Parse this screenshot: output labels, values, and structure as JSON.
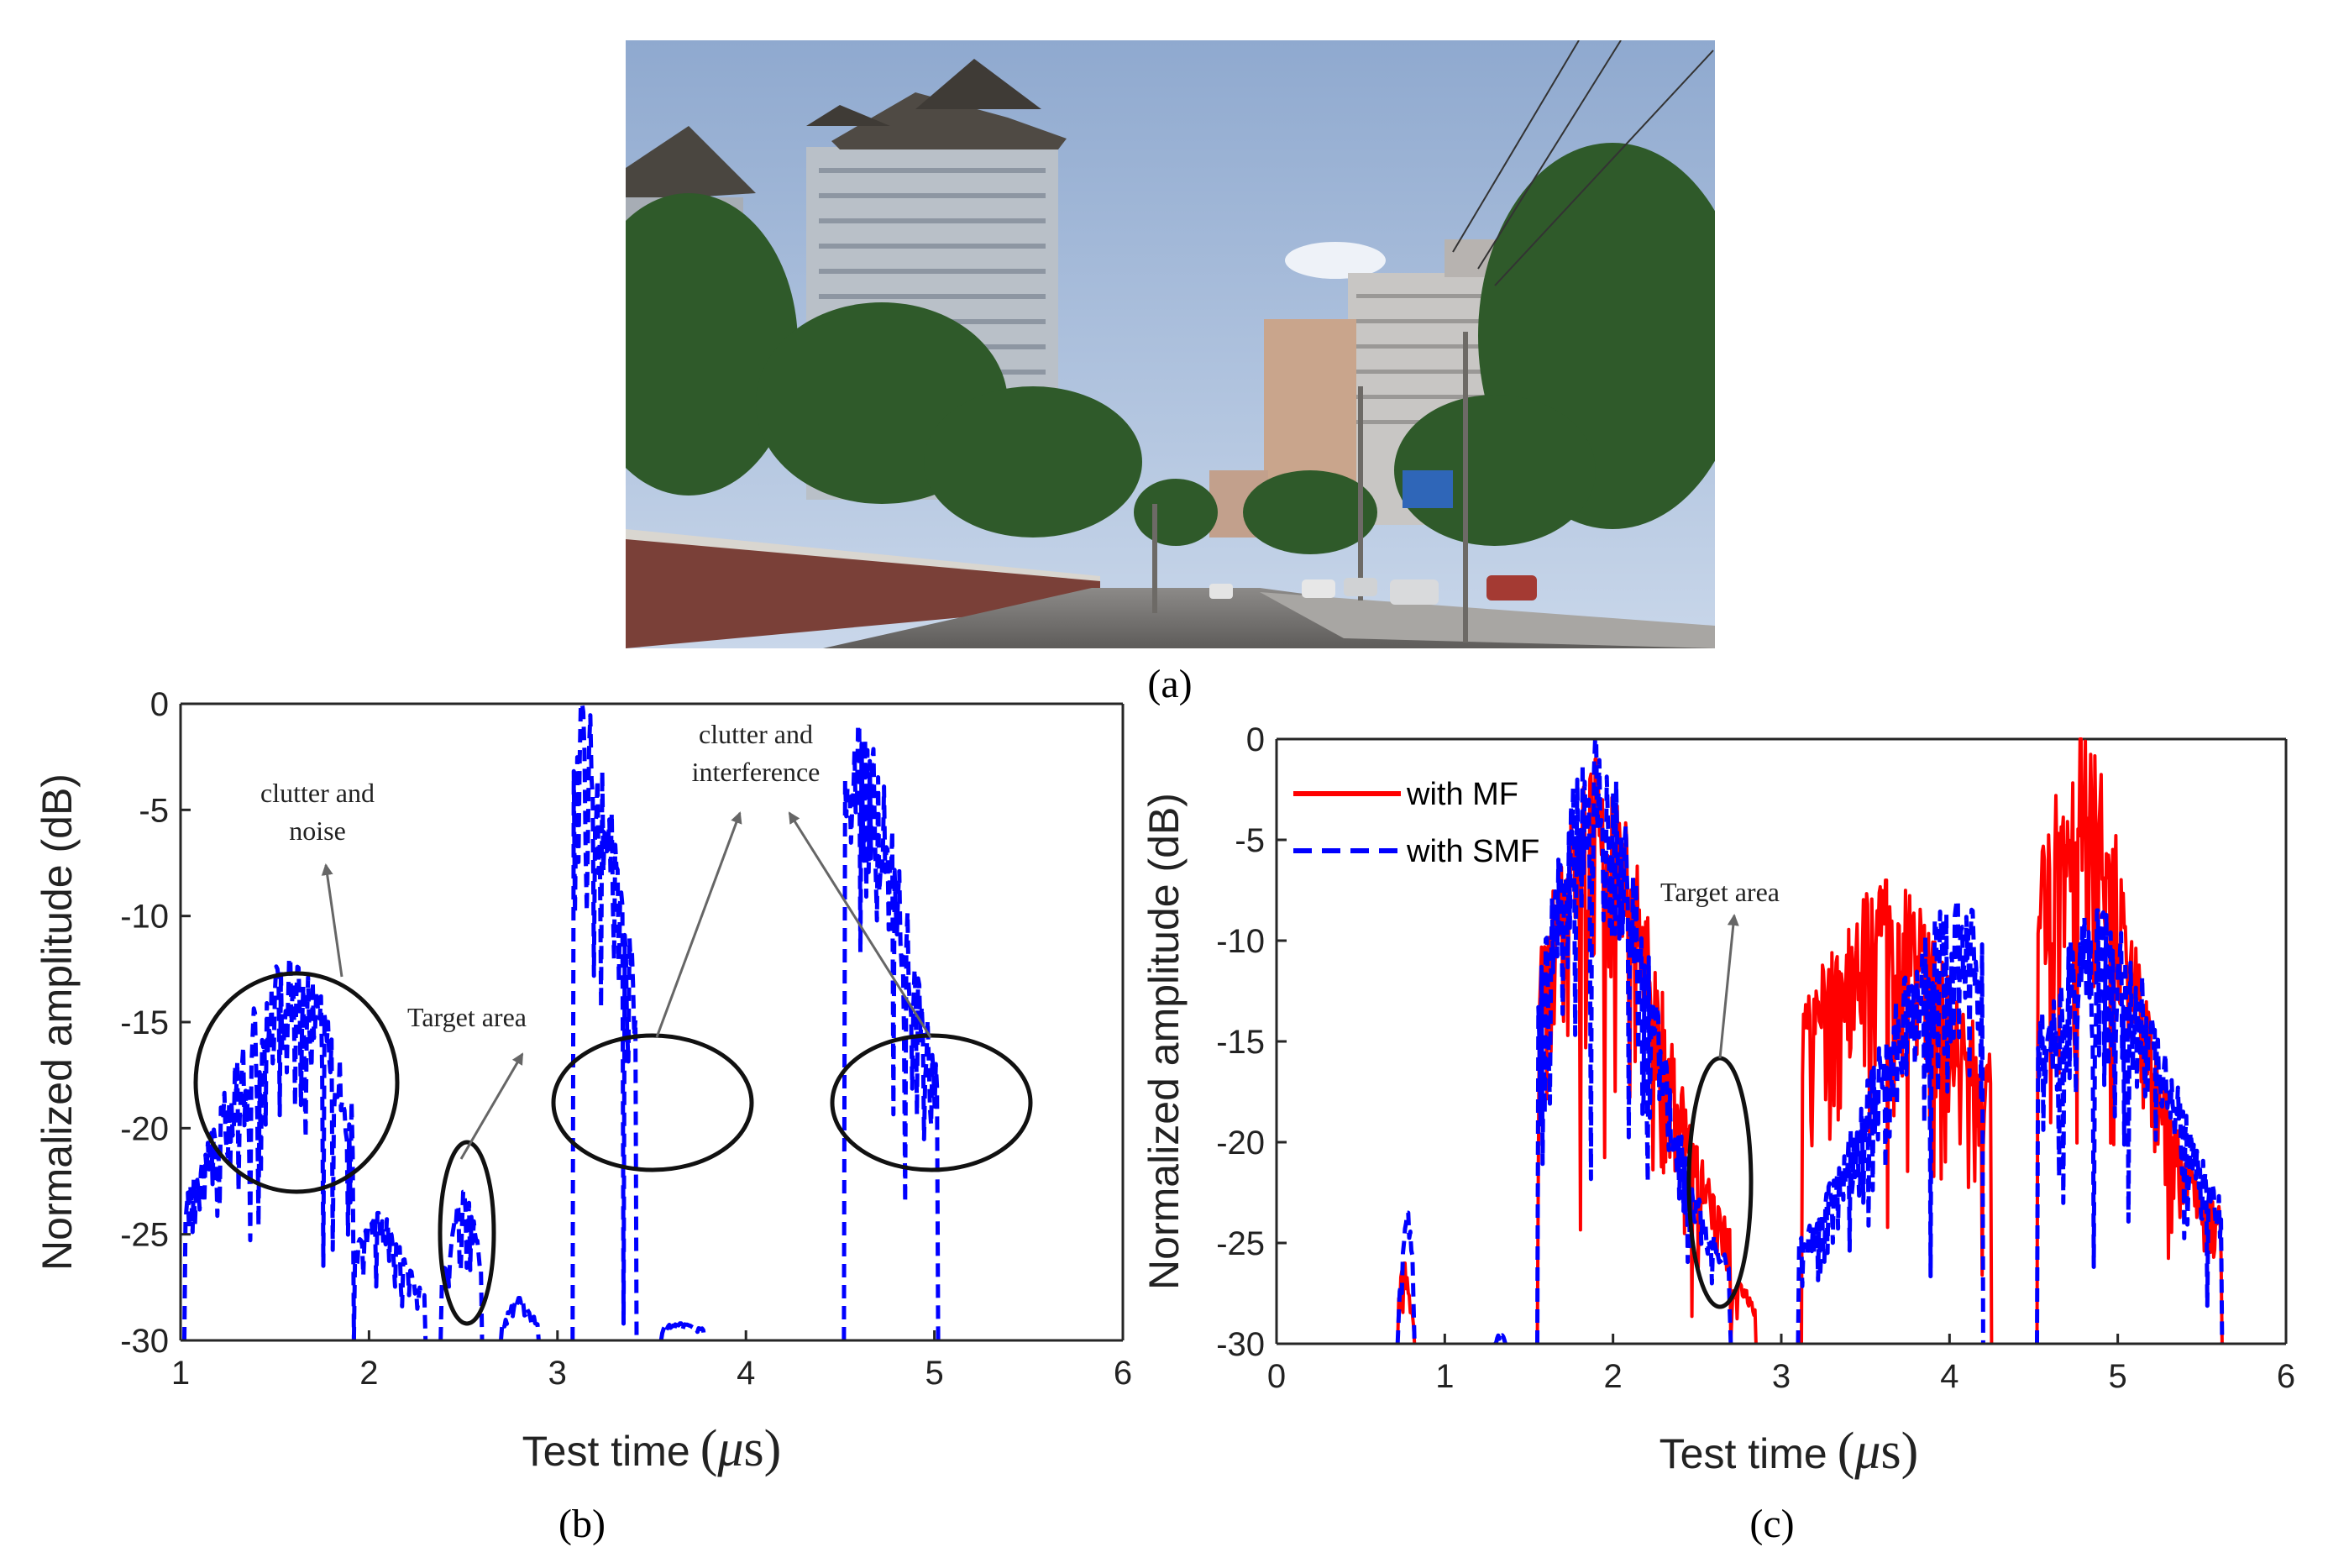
{
  "figure": {
    "captions": {
      "a": "(a)",
      "b": "(b)",
      "c": "(c)"
    },
    "photo_description_label": "street-scene-photo"
  },
  "colors": {
    "mf": "#ff0000",
    "smf": "#0000ff",
    "axis": "#262626",
    "annotation": "#666666"
  },
  "chart_data": [
    {
      "id": "b",
      "type": "line",
      "title": "",
      "xlabel": "Test time",
      "xlabel_unit_greek": "μ",
      "xlabel_unit_suffix": "s",
      "ylabel": "Normalized amplitude (dB)",
      "xlim": [
        1,
        6
      ],
      "ylim": [
        -30,
        0
      ],
      "xticks": [
        "1",
        "2",
        "3",
        "4",
        "5",
        "6"
      ],
      "yticks": [
        "0",
        "-5",
        "-10",
        "-15",
        "-20",
        "-25",
        "-30"
      ],
      "series": [
        {
          "name": "with SMF",
          "style": "dashed",
          "color": "#0000ff",
          "segments": [
            {
              "range": [
                1.02,
                1.92
              ],
              "base": -26,
              "peak": -12,
              "peak_at": 1.58,
              "spread": 0.45
            },
            {
              "range": [
                1.92,
                2.3
              ],
              "base": -29,
              "peak": -24,
              "peak_at": 2.05,
              "spread": 0.2
            },
            {
              "range": [
                2.38,
                2.6
              ],
              "base": -30,
              "peak": -23,
              "peak_at": 2.5,
              "spread": 0.12
            },
            {
              "range": [
                2.7,
                2.9
              ],
              "base": -30,
              "peak": -28,
              "peak_at": 2.8,
              "spread": 0.1
            },
            {
              "range": [
                3.08,
                3.42
              ],
              "base": -20,
              "peak": 0,
              "peak_at": 3.13,
              "spread": 0.3
            },
            {
              "range": [
                3.55,
                3.78
              ],
              "base": -30,
              "peak": -29.2,
              "peak_at": 3.65,
              "spread": 0.2
            },
            {
              "range": [
                4.52,
                5.02
              ],
              "base": -22,
              "peak": -1,
              "peak_at": 4.6,
              "spread": 0.35
            }
          ]
        }
      ],
      "annotations": [
        {
          "text_lines": [
            "clutter and",
            "noise"
          ],
          "label": "clutter-noise"
        },
        {
          "text_lines": [
            "Target area"
          ],
          "label": "target-area"
        },
        {
          "text_lines": [
            "clutter and",
            "interference"
          ],
          "label": "clutter-interference"
        }
      ]
    },
    {
      "id": "c",
      "type": "line",
      "title": "",
      "xlabel": "Test time",
      "xlabel_unit_greek": "μ",
      "xlabel_unit_suffix": "s",
      "ylabel": "Normalized amplitude (dB)",
      "xlim": [
        0,
        6
      ],
      "ylim": [
        -30,
        0
      ],
      "xticks": [
        "0",
        "1",
        "2",
        "3",
        "4",
        "5",
        "6"
      ],
      "yticks": [
        "0",
        "-5",
        "-10",
        "-15",
        "-20",
        "-25",
        "-30"
      ],
      "legend": {
        "position": "top-left",
        "entries": [
          "with MF",
          "with SMF"
        ]
      },
      "series": [
        {
          "name": "with MF",
          "style": "solid",
          "color": "#ff0000",
          "segments": [
            {
              "range": [
                0.72,
                0.82
              ],
              "base": -30,
              "peak": -26,
              "peak_at": 0.76,
              "spread": 0.05
            },
            {
              "range": [
                1.55,
                2.7
              ],
              "base": -26,
              "peak": -1,
              "peak_at": 1.9,
              "spread": 0.5
            },
            {
              "range": [
                2.7,
                2.85
              ],
              "base": -29,
              "peak": -27,
              "peak_at": 2.75,
              "spread": 0.1
            },
            {
              "range": [
                3.12,
                4.25
              ],
              "base": -20,
              "peak": -7,
              "peak_at": 3.62,
              "spread": 0.6
            },
            {
              "range": [
                4.52,
                5.62
              ],
              "base": -24,
              "peak": 0,
              "peak_at": 4.78,
              "spread": 0.45
            }
          ]
        },
        {
          "name": "with SMF",
          "style": "dashed",
          "color": "#0000ff",
          "segments": [
            {
              "range": [
                0.72,
                0.82
              ],
              "base": -30,
              "peak": -23.5,
              "peak_at": 0.78,
              "spread": 0.05
            },
            {
              "range": [
                1.3,
                1.36
              ],
              "base": -30,
              "peak": -29.5,
              "peak_at": 1.33,
              "spread": 0.03
            },
            {
              "range": [
                1.55,
                2.7
              ],
              "base": -27,
              "peak": 0,
              "peak_at": 1.9,
              "spread": 0.45
            },
            {
              "range": [
                3.1,
                4.2
              ],
              "base": -28,
              "peak": -8,
              "peak_at": 4.05,
              "spread": 0.7
            },
            {
              "range": [
                4.52,
                5.62
              ],
              "base": -27,
              "peak": -8.5,
              "peak_at": 4.88,
              "spread": 0.6
            }
          ]
        }
      ],
      "annotations": [
        {
          "text_lines": [
            "Target area"
          ],
          "label": "target-area"
        }
      ]
    }
  ]
}
